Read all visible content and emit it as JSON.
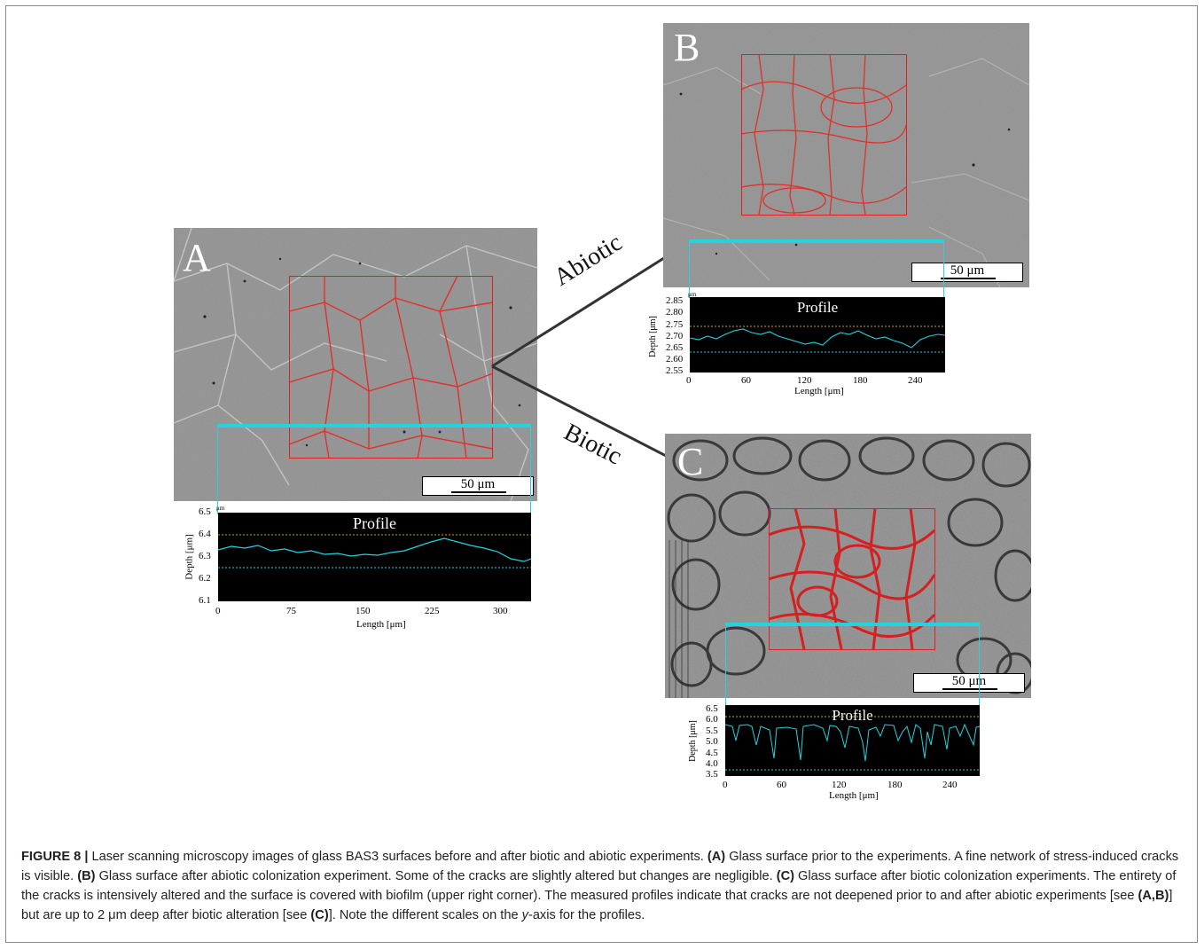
{
  "figure": {
    "panels": {
      "A": {
        "letter": "A",
        "scale": "50 μm",
        "profile_title": "Profile",
        "unit_tag": "μm",
        "x_ticks": [
          "0",
          "75",
          "150",
          "225",
          "300"
        ],
        "y_ticks": [
          "6.5",
          "6.4",
          "6.3",
          "6.2",
          "6.1"
        ],
        "xlabel": "Length [μm]",
        "ylabel": "Depth [μm]"
      },
      "B": {
        "letter": "B",
        "scale": "50 μm",
        "profile_title": "Profile",
        "unit_tag": "μm",
        "x_ticks": [
          "0",
          "60",
          "120",
          "180",
          "240"
        ],
        "y_ticks": [
          "2.85",
          "2.80",
          "2.75",
          "2.70",
          "2.65",
          "2.60",
          "2.55"
        ],
        "xlabel": "Length [μm]",
        "ylabel": "Depth [μm]"
      },
      "C": {
        "letter": "C",
        "scale": "50 μm",
        "profile_title": "Profile",
        "x_ticks": [
          "0",
          "60",
          "120",
          "180",
          "240"
        ],
        "y_ticks": [
          "6.5",
          "6.0",
          "5.5",
          "5.0",
          "4.5",
          "4.0",
          "3.5"
        ],
        "xlabel": "Length [μm]",
        "ylabel": "Depth [μm]"
      }
    },
    "arrows": {
      "abiotic": "Abiotic",
      "biotic": "Biotic"
    },
    "colors": {
      "roi": "#e02020",
      "profile_line": "#22d3e0",
      "profile_bg": "#000000",
      "ref_line": "#c8a020"
    }
  },
  "caption": {
    "label": "FIGURE 8 |",
    "intro": " Laser scanning microscopy images of glass BAS3 surfaces before and after biotic and abiotic experiments. ",
    "a_tag": "(A)",
    "a_text": " Glass surface prior to the experiments. A fine network of stress-induced cracks is visible. ",
    "b_tag": "(B)",
    "b_text": " Glass surface after abiotic colonization experiment. Some of the cracks are slightly altered but changes are negligible. ",
    "c_tag": "(C)",
    "c_text": " Glass surface after biotic colonization experiments. The entirety of the cracks is intensively altered and the surface is covered with biofilm (upper right corner). The measured profiles indicate that cracks are not deepened prior to and after abiotic experiments [see ",
    "ab_tag": "(A,B)",
    "ab_text": "] but are up to 2 μm deep after biotic alteration [see ",
    "c2_tag": "(C)",
    "c2_text": "]. Note the different scales on the ",
    "y_axis": "y",
    "end_text": "-axis for the profiles."
  }
}
